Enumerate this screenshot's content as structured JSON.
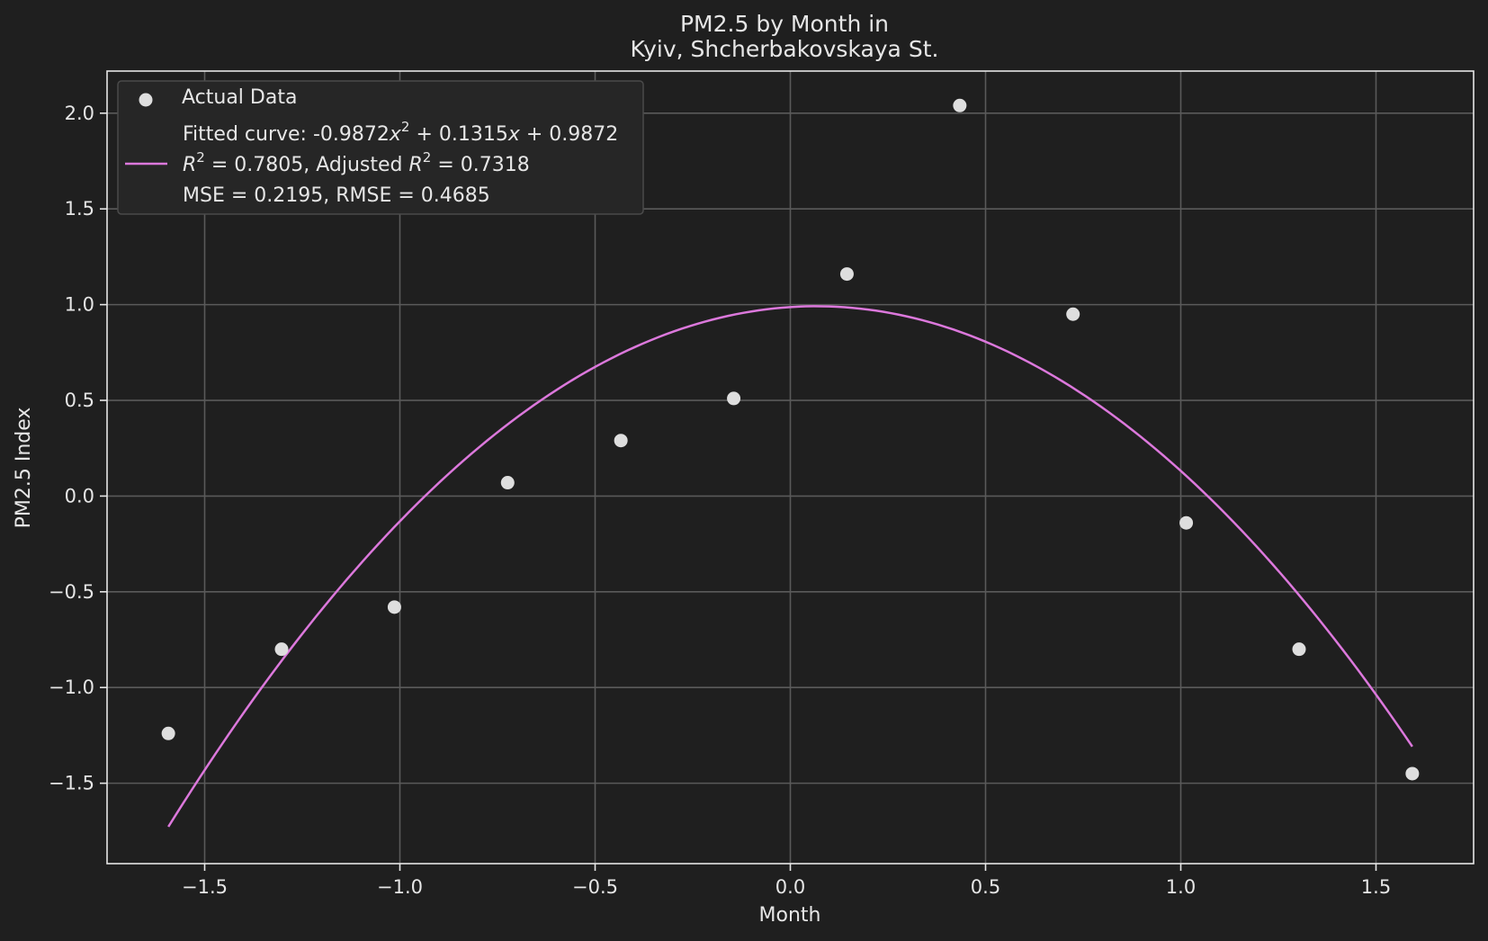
{
  "chart_data": {
    "type": "scatter",
    "title_line1": "PM2.5 by Month in",
    "title_line2": "Kyiv, Shcherbakovskaya St.",
    "xlabel": "Month",
    "ylabel": "PM2.5 Index",
    "xlim": [
      -1.75,
      1.75
    ],
    "ylim": [
      -1.92,
      2.22
    ],
    "xticks": [
      -1.5,
      -1.0,
      -0.5,
      0.0,
      0.5,
      1.0,
      1.5
    ],
    "xtick_labels": [
      "−1.5",
      "−1.0",
      "−0.5",
      "0.0",
      "0.5",
      "1.0",
      "1.5"
    ],
    "yticks": [
      -1.5,
      -1.0,
      -0.5,
      0.0,
      0.5,
      1.0,
      1.5,
      2.0
    ],
    "ytick_labels": [
      "−1.5",
      "−1.0",
      "−0.5",
      "0.0",
      "0.5",
      "1.0",
      "1.5",
      "2.0"
    ],
    "grid": true,
    "legend_position": "top-left",
    "series": [
      {
        "name": "Actual Data",
        "kind": "scatter",
        "color": "#dedede",
        "x": [
          -1.593,
          -1.303,
          -1.014,
          -0.724,
          -0.434,
          -0.145,
          0.145,
          0.434,
          0.724,
          1.014,
          1.303,
          1.593
        ],
        "y": [
          -1.24,
          -0.8,
          -0.58,
          0.07,
          0.29,
          0.51,
          1.16,
          2.04,
          0.95,
          -0.14,
          -0.8,
          -1.45
        ]
      },
      {
        "name": "Fitted curve",
        "kind": "line",
        "color": "#dc78dc",
        "coefficients": [
          -0.9872,
          0.1315,
          0.9872
        ],
        "x_range": [
          -1.593,
          1.593
        ]
      }
    ],
    "legend": {
      "scatter_label": "Actual Data",
      "fit_line1_prefix": "Fitted curve: -0.9872",
      "fit_line1_x": "x",
      "fit_line1_exp": "2",
      "fit_line1_mid": " + 0.1315",
      "fit_line1_x2": "x",
      "fit_line1_suffix": " + 0.9872",
      "r2_R": "R",
      "r2_exp": "2",
      "r2_value": " = 0.7805, Adjusted ",
      "adj_R": "R",
      "adj_exp": "2",
      "adj_value": " = 0.7318",
      "mse_line": "MSE = 0.2195, RMSE = 0.4685"
    }
  }
}
